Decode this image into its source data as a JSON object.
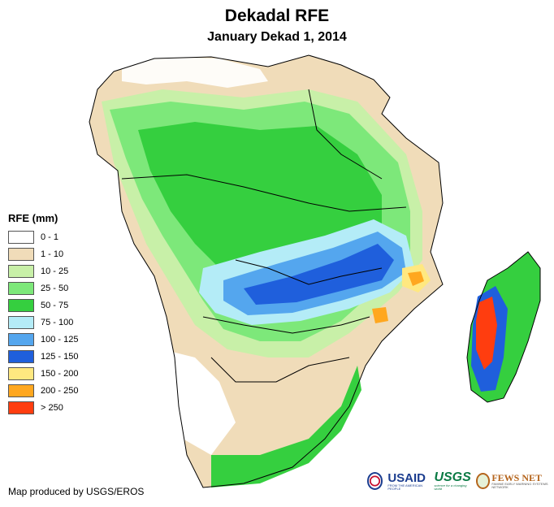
{
  "title": "Dekadal RFE",
  "subtitle": "January Dekad 1, 2014",
  "legend": {
    "title": "RFE (mm)",
    "items": [
      {
        "label": "0 - 1",
        "color": "#ffffff"
      },
      {
        "label": "1 - 10",
        "color": "#f0dcb9"
      },
      {
        "label": "10 - 25",
        "color": "#c8f0a8"
      },
      {
        "label": "25 - 50",
        "color": "#7de87a"
      },
      {
        "label": "50 - 75",
        "color": "#35cf3f"
      },
      {
        "label": "75 - 100",
        "color": "#b4ecf7"
      },
      {
        "label": "100 - 125",
        "color": "#54a6ee"
      },
      {
        "label": "125 - 150",
        "color": "#1f5fdc"
      },
      {
        "label": "150 - 200",
        "color": "#ffe880"
      },
      {
        "label": "200 - 250",
        "color": "#ffa71f"
      },
      {
        "label": "> 250",
        "color": "#ff3d0f"
      }
    ]
  },
  "credit": "Map produced by USGS/EROS",
  "logos": {
    "usaid": "USAID",
    "usaid_tagline": "FROM THE AMERICAN PEOPLE",
    "usgs": "USGS",
    "usgs_tagline": "science for a changing world",
    "fews": "FEWS NET",
    "fews_tagline": "FAMINE EARLY WARNING SYSTEMS NETWORK"
  }
}
